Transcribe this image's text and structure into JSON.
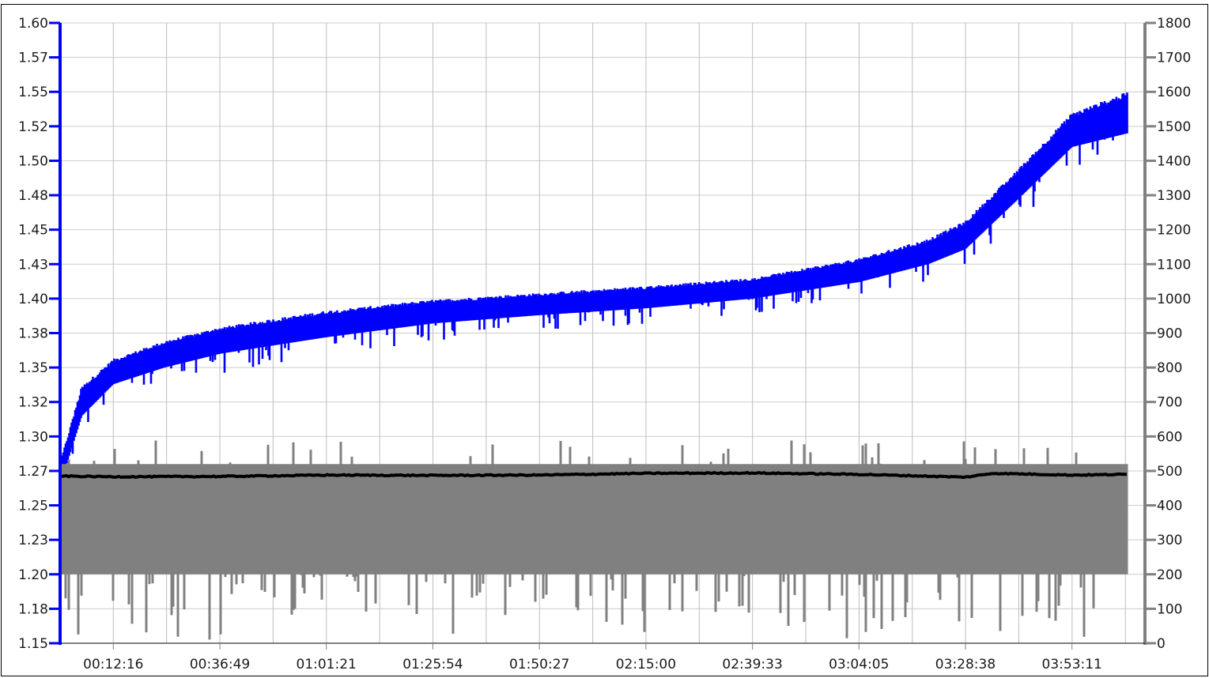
{
  "chart_data": {
    "type": "line",
    "title": "",
    "xlabel": "",
    "ylabel_left": "",
    "ylabel_right": "",
    "grid": true,
    "legend": "none",
    "x_range": [
      "00:00:00",
      "04:10:00"
    ],
    "x_ticks": [
      "00:12:16",
      "00:36:49",
      "01:01:21",
      "01:25:54",
      "01:50:27",
      "02:15:00",
      "02:39:33",
      "03:04:05",
      "03:28:38",
      "03:53:11"
    ],
    "y_left": {
      "range": [
        1.15,
        1.6
      ],
      "ticks": [
        "1.60",
        "1.57",
        "1.55",
        "1.52",
        "1.50",
        "1.48",
        "1.45",
        "1.43",
        "1.40",
        "1.38",
        "1.35",
        "1.32",
        "1.30",
        "1.27",
        "1.25",
        "1.23",
        "1.20",
        "1.18",
        "1.15"
      ],
      "color": "#0000ff"
    },
    "y_right": {
      "range": [
        0,
        1800
      ],
      "ticks": [
        "1800",
        "1700",
        "1600",
        "1500",
        "1400",
        "1300",
        "1200",
        "1100",
        "1000",
        "900",
        "800",
        "700",
        "600",
        "500",
        "400",
        "300",
        "200",
        "100",
        "0"
      ],
      "color": "#808080"
    },
    "series": [
      {
        "axis": "left",
        "color": "#0000ff",
        "style": "dense band",
        "x": [
          "00:00:00",
          "00:05:00",
          "00:12:16",
          "00:24:00",
          "00:36:49",
          "01:01:21",
          "01:25:54",
          "01:50:27",
          "02:15:00",
          "02:39:33",
          "03:04:05",
          "03:20:00",
          "03:28:38",
          "03:40:00",
          "03:53:11",
          "04:06:00"
        ],
        "y_upper": [
          1.28,
          1.335,
          1.355,
          1.368,
          1.378,
          1.39,
          1.398,
          1.403,
          1.408,
          1.414,
          1.428,
          1.442,
          1.455,
          1.49,
          1.533,
          1.548
        ],
        "y_lower": [
          1.265,
          1.315,
          1.338,
          1.35,
          1.36,
          1.372,
          1.382,
          1.388,
          1.393,
          1.4,
          1.412,
          1.425,
          1.436,
          1.47,
          1.51,
          1.52
        ]
      },
      {
        "axis": "right",
        "color": "#808080",
        "style": "dense band",
        "x": [
          "00:00:00",
          "04:06:00"
        ],
        "y_upper": [
          520,
          520
        ],
        "y_lower": [
          200,
          200
        ],
        "spike_max": 590,
        "spike_min": 10
      },
      {
        "axis": "right",
        "color": "#000000",
        "style": "line",
        "x": [
          "00:00:00",
          "00:12:16",
          "00:36:49",
          "01:01:21",
          "01:25:54",
          "01:50:27",
          "02:15:00",
          "02:39:33",
          "03:04:05",
          "03:28:38",
          "03:35:00",
          "03:53:11",
          "04:06:00"
        ],
        "y": [
          485,
          483,
          484,
          488,
          487,
          488,
          493,
          494,
          490,
          482,
          493,
          488,
          490
        ]
      }
    ]
  }
}
